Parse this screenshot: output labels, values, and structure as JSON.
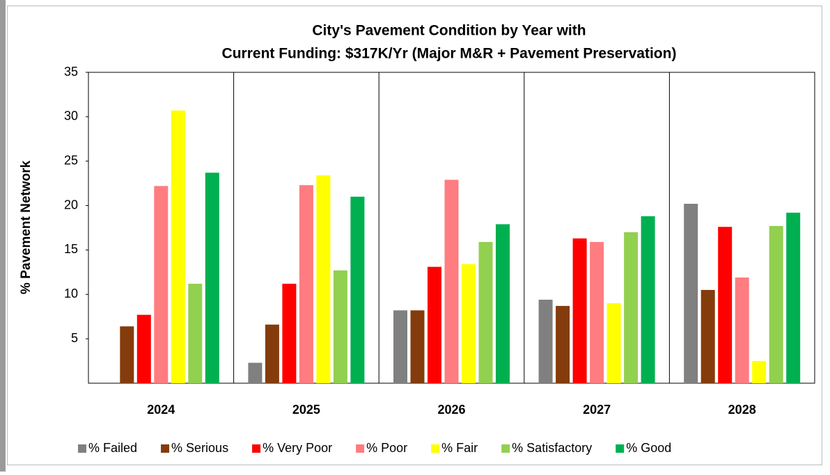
{
  "chart_data": {
    "type": "bar",
    "title": [
      "City's Pavement Condition by Year with",
      "Current Funding: $317K/Yr (Major M&R + Pavement Preservation)"
    ],
    "y_label": "% Pavement Network",
    "categories": [
      "2024",
      "2025",
      "2026",
      "2027",
      "2028"
    ],
    "series": [
      {
        "name": "% Failed",
        "color": "#808080",
        "values": [
          0,
          2.3,
          8.2,
          9.4,
          20.2
        ]
      },
      {
        "name": "% Serious",
        "color": "#843c0c",
        "values": [
          6.4,
          6.6,
          8.2,
          8.7,
          10.5
        ]
      },
      {
        "name": "% Very Poor",
        "color": "#ff0000",
        "values": [
          7.7,
          11.2,
          13.1,
          16.3,
          17.6
        ]
      },
      {
        "name": "% Poor",
        "color": "#ff7c80",
        "values": [
          22.2,
          22.3,
          22.9,
          15.9,
          11.9
        ]
      },
      {
        "name": "% Fair",
        "color": "#ffff00",
        "values": [
          30.7,
          23.4,
          13.4,
          9.0,
          2.5
        ]
      },
      {
        "name": "% Satisfactory",
        "color": "#92d050",
        "values": [
          11.2,
          12.7,
          15.9,
          17.0,
          17.7
        ]
      },
      {
        "name": "% Good",
        "color": "#00b050",
        "values": [
          23.7,
          21.0,
          17.9,
          18.8,
          19.2
        ]
      }
    ],
    "ylim": [
      0,
      35
    ],
    "yticks": [
      5,
      10,
      15,
      20,
      25,
      30,
      35
    ],
    "grid": false,
    "legend": "bottom"
  }
}
